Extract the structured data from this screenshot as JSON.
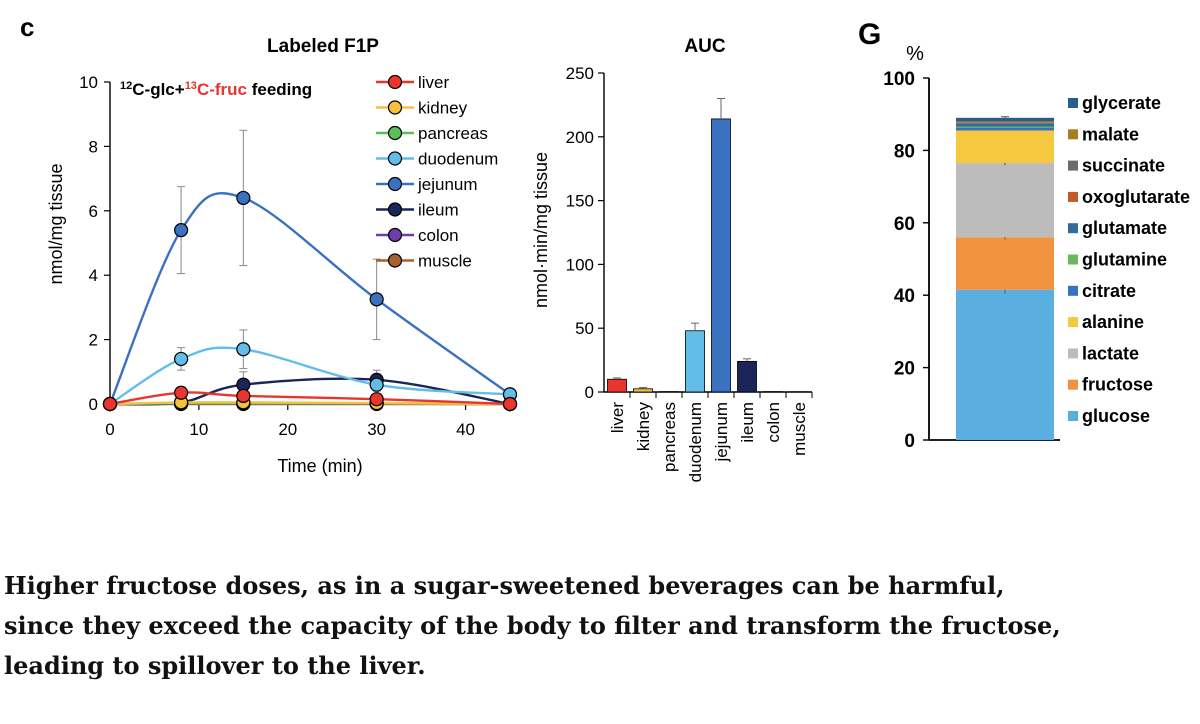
{
  "panels": {
    "c_label": "c",
    "g_label": "G"
  },
  "chart_data": [
    {
      "type": "line",
      "title": "Labeled F1P",
      "annotation": {
        "pre1": "12",
        "pre2": "C-glc+",
        "red1": "13",
        "red2": "C-fruc",
        "post": " feeding"
      },
      "xlabel": "Time (min)",
      "ylabel": "nmol/mg tissue",
      "xlim": [
        0,
        45
      ],
      "ylim": [
        0,
        10
      ],
      "xticks": [
        "0",
        "10",
        "20",
        "30",
        "40"
      ],
      "yticks": [
        "0",
        "2",
        "4",
        "6",
        "8",
        "10"
      ],
      "x": [
        0,
        8,
        15,
        30,
        45
      ],
      "legend_position": "top-right",
      "series": [
        {
          "name": "liver",
          "color": "#e8352e",
          "values": [
            0,
            0.35,
            0.25,
            0.15,
            0
          ],
          "errors": [
            0,
            0,
            0,
            0,
            0
          ]
        },
        {
          "name": "kidney",
          "color": "#f5c13d",
          "values": [
            0,
            0.05,
            0.05,
            0.03,
            0
          ],
          "errors": [
            0,
            0,
            0,
            0,
            0
          ]
        },
        {
          "name": "pancreas",
          "color": "#5cbd5c",
          "values": [
            0,
            0.02,
            0.02,
            0.02,
            0
          ],
          "errors": [
            0,
            0,
            0,
            0,
            0
          ]
        },
        {
          "name": "duodenum",
          "color": "#62bde9",
          "values": [
            0,
            1.4,
            1.7,
            0.6,
            0.3
          ],
          "errors": [
            0,
            0.35,
            0.6,
            0.2,
            0
          ]
        },
        {
          "name": "jejunum",
          "color": "#3a72c1",
          "values": [
            0,
            5.4,
            6.4,
            3.25,
            0.3
          ],
          "errors": [
            0,
            1.35,
            2.1,
            1.25,
            0
          ]
        },
        {
          "name": "ileum",
          "color": "#1a2559",
          "values": [
            0,
            0.05,
            0.6,
            0.75,
            0
          ],
          "errors": [
            0,
            0,
            0.4,
            0.3,
            0
          ]
        },
        {
          "name": "colon",
          "color": "#6b3fa6",
          "values": [
            0,
            0.01,
            0.01,
            0.01,
            0
          ],
          "errors": [
            0,
            0,
            0,
            0,
            0
          ]
        },
        {
          "name": "muscle",
          "color": "#a9612d",
          "values": [
            0,
            0,
            0,
            0,
            0
          ],
          "errors": [
            0,
            0,
            0,
            0,
            0
          ]
        }
      ]
    },
    {
      "type": "bar",
      "title": "AUC",
      "ylabel": "nmol·min/mg tissue",
      "ylim": [
        0,
        250
      ],
      "yticks": [
        "0",
        "50",
        "100",
        "150",
        "200",
        "250"
      ],
      "categories": [
        "liver",
        "kidney",
        "pancreas",
        "duodenum",
        "jejunum",
        "ileum",
        "colon",
        "muscle"
      ],
      "values": [
        10,
        2.5,
        0.3,
        48,
        214,
        24,
        0.3,
        0.2
      ],
      "errors": [
        1,
        1,
        0,
        6,
        16,
        2,
        0,
        0
      ],
      "colors": [
        "#e8352e",
        "#f5c13d",
        "#5cbd5c",
        "#62bde9",
        "#3a72c1",
        "#1a2559",
        "#6b3fa6",
        "#a9612d"
      ]
    },
    {
      "type": "bar",
      "subtype": "stacked",
      "ylabel": "%",
      "ylim": [
        0,
        100
      ],
      "yticks": [
        "0",
        "20",
        "40",
        "60",
        "80",
        "100"
      ],
      "legend_position": "right",
      "series": [
        {
          "name": "glucose",
          "color": "#5aaee0",
          "value": 41.5,
          "error": 1
        },
        {
          "name": "fructose",
          "color": "#f0923e",
          "value": 14.5,
          "error": 0.6
        },
        {
          "name": "lactate",
          "color": "#bcbcbc",
          "value": 20.5,
          "error": 0.6
        },
        {
          "name": "alanine",
          "color": "#f6c83f",
          "value": 9,
          "error": 0
        },
        {
          "name": "citrate",
          "color": "#3672c0",
          "value": 0.8,
          "error": 0
        },
        {
          "name": "glutamine",
          "color": "#6ab85a",
          "value": 0.3,
          "error": 0
        },
        {
          "name": "glutamate",
          "color": "#2e6c9e",
          "value": 0.8,
          "error": 0
        },
        {
          "name": "oxoglutarate",
          "color": "#c05a28",
          "value": 0.2,
          "error": 0
        },
        {
          "name": "succinate",
          "color": "#6b6b6b",
          "value": 0.2,
          "error": 0
        },
        {
          "name": "malate",
          "color": "#a87e22",
          "value": 0.2,
          "error": 0
        },
        {
          "name": "glycerate",
          "color": "#2a5d8a",
          "value": 1,
          "error": 0.3
        }
      ]
    }
  ],
  "caption": {
    "line1": "Higher fructose doses, as in a sugar-sweetened beverages can be harmful,",
    "line2": "since they exceed the capacity of the body to filter and transform the fructose,",
    "line3": "leading to spillover to the liver."
  }
}
